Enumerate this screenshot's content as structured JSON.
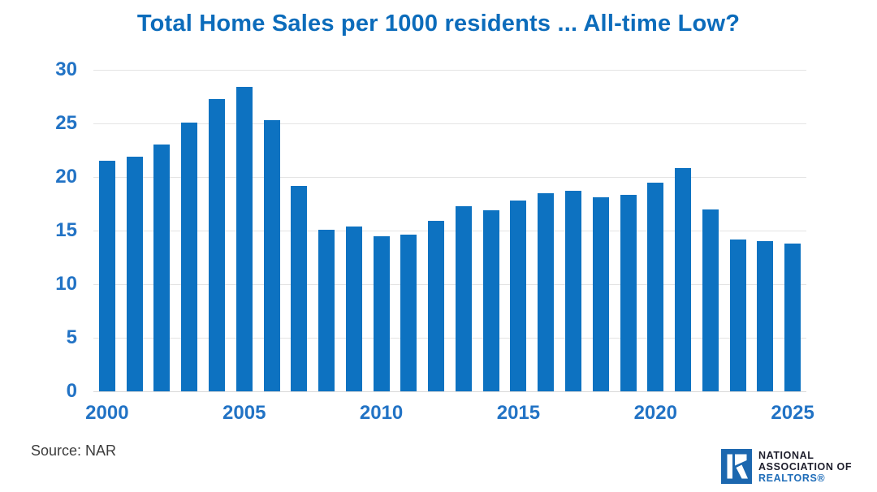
{
  "title": "Total Home Sales per 1000 residents ... All-time Low?",
  "source": "Source: NAR",
  "logo": {
    "icon": "realtor-block-r-icon",
    "org_line1": "NATIONAL",
    "org_line2": "ASSOCIATION OF",
    "org_line3": "REALTORS®"
  },
  "colors": {
    "bar": "#0d72c1",
    "title": "#0c6cbb",
    "axis_label": "#2273c5",
    "gridline": "#e4e4e4",
    "axis_line": "#d9d9d9",
    "source_text": "#3c3c3c",
    "logo_navy": "#1e1e2c",
    "logo_blue": "#1e6cb8"
  },
  "chart_data": {
    "type": "bar",
    "title": "Total Home Sales per 1000 residents ... All-time Low?",
    "categories": [
      2000,
      2001,
      2002,
      2003,
      2004,
      2005,
      2006,
      2007,
      2008,
      2009,
      2010,
      2011,
      2012,
      2013,
      2014,
      2015,
      2016,
      2017,
      2018,
      2019,
      2020,
      2021,
      2022,
      2023,
      2024,
      2025
    ],
    "values": [
      21.5,
      21.9,
      23.0,
      25.1,
      27.3,
      28.4,
      25.3,
      19.2,
      15.1,
      15.4,
      14.5,
      14.6,
      15.9,
      17.3,
      16.9,
      17.8,
      18.5,
      18.7,
      18.1,
      18.3,
      19.5,
      20.8,
      17.0,
      14.2,
      14.0,
      13.8
    ],
    "xlabel": "",
    "ylabel": "",
    "ylim": [
      0,
      30
    ],
    "yticks": [
      0,
      5,
      10,
      15,
      20,
      25,
      30
    ],
    "xticks_shown": [
      "2000",
      "2005",
      "2010",
      "2015",
      "2020",
      "2025"
    ],
    "grid": true,
    "legend": false,
    "bar_color": "#0d72c1"
  }
}
